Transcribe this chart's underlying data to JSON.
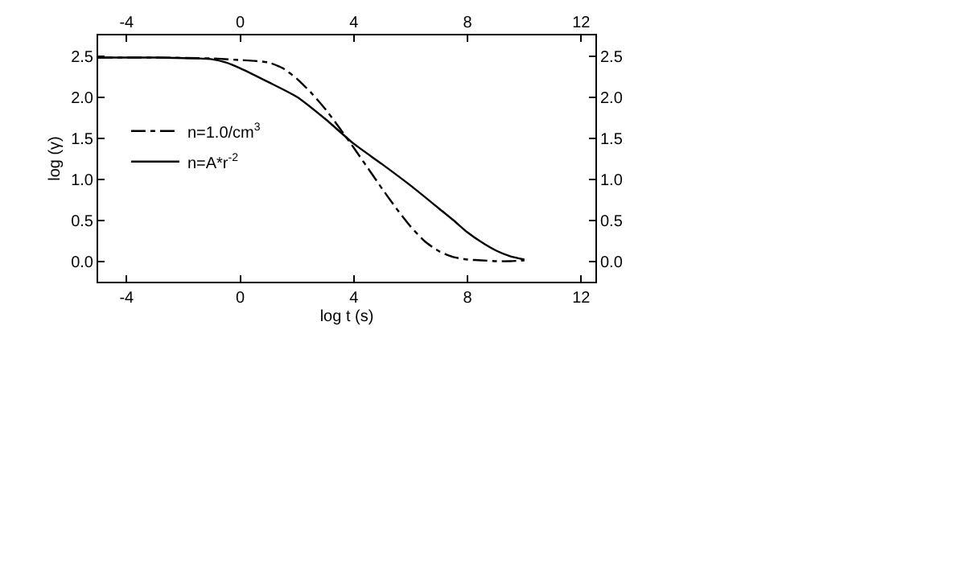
{
  "chart_data": {
    "type": "line",
    "xlabel": "log t (s)",
    "ylabel": "log (γ)",
    "xlim": [
      -5,
      12.5
    ],
    "xticks": [
      -4,
      0,
      4,
      8,
      12
    ],
    "ylim": [
      -0.25,
      2.75
    ],
    "yticks": [
      {
        "value": 0,
        "label": "0.0"
      },
      0.5,
      {
        "value": 1,
        "label": "1.0"
      },
      1.5,
      {
        "value": 2,
        "label": "2.0"
      },
      2.5
    ],
    "x2lim": [
      -5,
      12.5
    ],
    "x2ticks": [
      -4,
      0,
      4,
      8,
      12
    ],
    "y2lim": [
      -0.25,
      2.75
    ],
    "y2ticks": [
      {
        "value": 0,
        "label": "0.0"
      },
      0.5,
      {
        "value": 1,
        "label": "1.0"
      },
      1.5,
      {
        "value": 2,
        "label": "2.0"
      },
      2.5
    ],
    "legend": "left",
    "marker": "none",
    "series": [
      {
        "name": "n=1.0/cm$^{3}$",
        "color": "#000000",
        "line_style": "dashdot",
        "x": [
          -5,
          -3,
          -1,
          0,
          0.5,
          1,
          1.5,
          2,
          2.5,
          3,
          3.5,
          4,
          4.5,
          5,
          5.5,
          6,
          6.5,
          7,
          7.5,
          8,
          8.5,
          9,
          9.5,
          10
        ],
        "values": [
          2.48,
          2.48,
          2.47,
          2.45,
          2.44,
          2.42,
          2.35,
          2.22,
          2.05,
          1.85,
          1.62,
          1.38,
          1.13,
          0.88,
          0.64,
          0.42,
          0.24,
          0.12,
          0.05,
          0.02,
          0.01,
          0.0,
          0.0,
          0.01
        ]
      },
      {
        "name": "n=A*r$^{-2}$",
        "color": "#000000",
        "line_style": "solid",
        "x": [
          -5,
          -3,
          -1.5,
          -1,
          -0.5,
          0,
          1,
          2,
          3,
          4,
          5,
          6,
          7,
          7.5,
          8,
          8.5,
          9,
          9.5,
          10
        ],
        "values": [
          2.48,
          2.48,
          2.47,
          2.46,
          2.42,
          2.35,
          2.18,
          2.0,
          1.73,
          1.43,
          1.18,
          0.92,
          0.64,
          0.5,
          0.35,
          0.23,
          0.13,
          0.06,
          0.02
        ]
      }
    ]
  }
}
